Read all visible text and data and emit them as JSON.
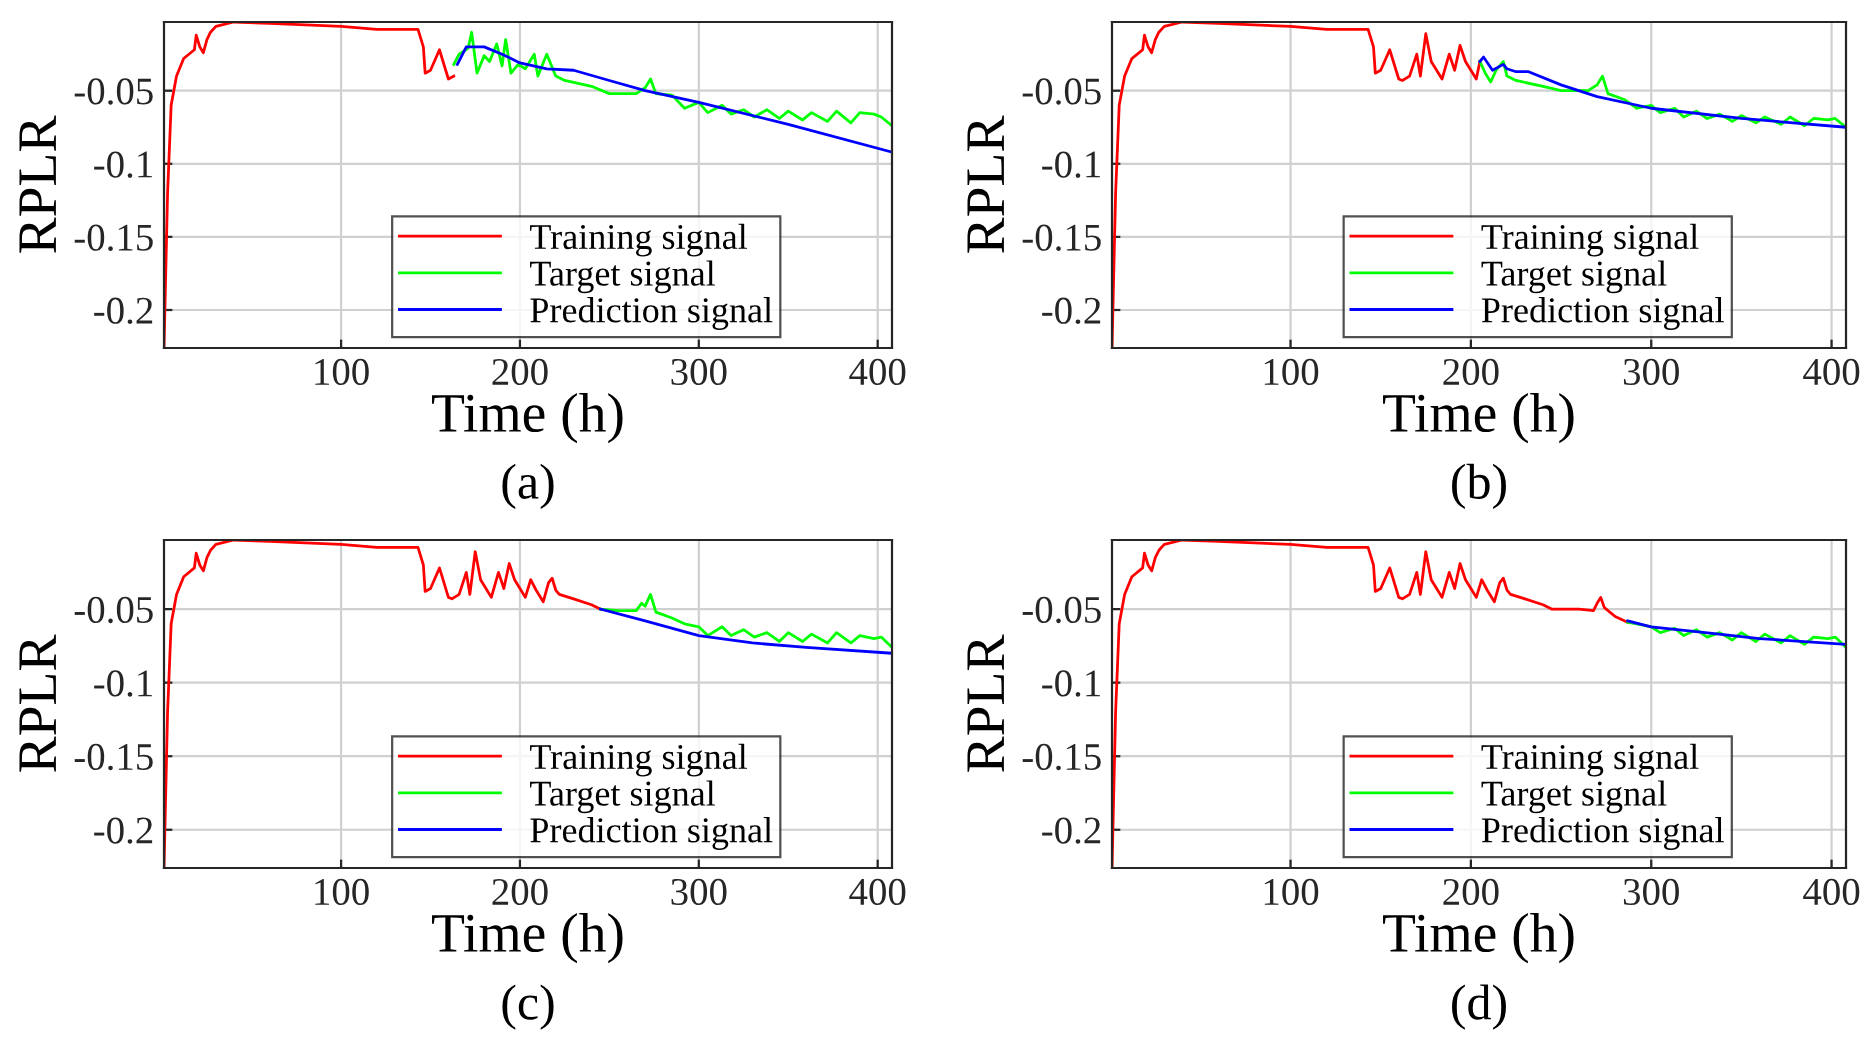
{
  "chart_data": [
    {
      "type": "line",
      "xlabel": "Time (h)",
      "ylabel": "RPLR",
      "annotations": [
        "(a)"
      ],
      "xlim": [
        1,
        408
      ],
      "ylim": [
        -0.226,
        -0.003
      ],
      "xticks": [
        100,
        200,
        300,
        400
      ],
      "yticks": [
        {
          "value": -0.2,
          "label": "-0.2"
        },
        {
          "value": -0.15,
          "label": "-0.15"
        },
        {
          "value": -0.1,
          "label": "-0.1"
        },
        {
          "value": -0.05,
          "label": "-0.05"
        }
      ],
      "grid": true,
      "legend": "bottom",
      "series": [
        {
          "name": "Training signal",
          "color": "#ff0000",
          "x": [
            1,
            3,
            5,
            8,
            12,
            18,
            19,
            21,
            23,
            25,
            27,
            30,
            40,
            60,
            80,
            100,
            120,
            140,
            143,
            146,
            147,
            150,
            155,
            157,
            160,
            163
          ],
          "values": [
            -0.226,
            -0.12,
            -0.06,
            -0.04,
            -0.028,
            -0.022,
            -0.012,
            -0.02,
            -0.024,
            -0.015,
            -0.01,
            -0.006,
            -0.003,
            -0.004,
            -0.005,
            -0.006,
            -0.008,
            -0.008,
            -0.008,
            -0.02,
            -0.038,
            -0.036,
            -0.022,
            -0.03,
            -0.042,
            -0.04
          ]
        },
        {
          "name": "Target signal",
          "color": "#00ff00",
          "x": [
            163,
            166,
            171,
            173,
            176,
            180,
            183,
            187,
            190,
            192,
            195,
            199,
            203,
            208,
            210,
            215,
            220,
            225,
            240,
            250,
            265,
            270,
            273,
            276,
            285,
            292,
            300,
            305,
            313,
            318,
            325,
            331,
            338,
            345,
            350,
            358,
            363,
            372,
            377,
            385,
            390,
            398,
            402,
            408
          ],
          "values": [
            -0.032,
            -0.025,
            -0.021,
            -0.01,
            -0.038,
            -0.026,
            -0.03,
            -0.018,
            -0.033,
            -0.015,
            -0.038,
            -0.032,
            -0.035,
            -0.025,
            -0.04,
            -0.025,
            -0.04,
            -0.043,
            -0.047,
            -0.052,
            -0.052,
            -0.048,
            -0.042,
            -0.052,
            -0.053,
            -0.062,
            -0.058,
            -0.065,
            -0.06,
            -0.066,
            -0.063,
            -0.068,
            -0.063,
            -0.069,
            -0.064,
            -0.07,
            -0.065,
            -0.071,
            -0.064,
            -0.072,
            -0.065,
            -0.066,
            -0.068,
            -0.074
          ]
        },
        {
          "name": "Prediction signal",
          "color": "#0000ff",
          "x": [
            165,
            170,
            180,
            190,
            200,
            215,
            230,
            250,
            270,
            300,
            350,
            408
          ],
          "values": [
            -0.032,
            -0.02,
            -0.02,
            -0.025,
            -0.031,
            -0.035,
            -0.036,
            -0.043,
            -0.05,
            -0.058,
            -0.073,
            -0.092
          ]
        }
      ]
    },
    {
      "type": "line",
      "xlabel": "Time (h)",
      "ylabel": "RPLR",
      "annotations": [
        "(b)"
      ],
      "xlim": [
        1,
        408
      ],
      "ylim": [
        -0.226,
        -0.003
      ],
      "xticks": [
        100,
        200,
        300,
        400
      ],
      "yticks": [
        {
          "value": -0.2,
          "label": "-0.2"
        },
        {
          "value": -0.15,
          "label": "-0.15"
        },
        {
          "value": -0.1,
          "label": "-0.1"
        },
        {
          "value": -0.05,
          "label": "-0.05"
        }
      ],
      "grid": true,
      "legend": "bottom",
      "series": [
        {
          "name": "Training signal",
          "color": "#ff0000",
          "x": [
            1,
            3,
            5,
            8,
            12,
            18,
            19,
            21,
            23,
            25,
            27,
            30,
            40,
            60,
            80,
            100,
            120,
            140,
            143,
            146,
            147,
            150,
            155,
            157,
            160,
            162,
            166,
            170,
            172,
            175,
            178,
            181,
            184,
            188,
            191,
            194,
            197,
            200,
            203,
            205
          ],
          "values": [
            -0.226,
            -0.12,
            -0.06,
            -0.04,
            -0.028,
            -0.022,
            -0.012,
            -0.02,
            -0.024,
            -0.015,
            -0.01,
            -0.006,
            -0.003,
            -0.004,
            -0.005,
            -0.006,
            -0.008,
            -0.008,
            -0.008,
            -0.02,
            -0.038,
            -0.036,
            -0.022,
            -0.03,
            -0.042,
            -0.043,
            -0.04,
            -0.025,
            -0.04,
            -0.011,
            -0.03,
            -0.036,
            -0.042,
            -0.025,
            -0.036,
            -0.019,
            -0.03,
            -0.036,
            -0.042,
            -0.03
          ]
        },
        {
          "name": "Target signal",
          "color": "#00ff00",
          "x": [
            205,
            208,
            211,
            214,
            218,
            220,
            225,
            240,
            250,
            265,
            270,
            273,
            276,
            285,
            292,
            300,
            305,
            313,
            318,
            325,
            331,
            338,
            345,
            350,
            358,
            363,
            372,
            377,
            385,
            390,
            398,
            402,
            408
          ],
          "values": [
            -0.03,
            -0.038,
            -0.044,
            -0.036,
            -0.03,
            -0.04,
            -0.043,
            -0.047,
            -0.05,
            -0.05,
            -0.046,
            -0.04,
            -0.052,
            -0.056,
            -0.062,
            -0.06,
            -0.065,
            -0.062,
            -0.068,
            -0.064,
            -0.069,
            -0.066,
            -0.071,
            -0.067,
            -0.072,
            -0.068,
            -0.073,
            -0.068,
            -0.074,
            -0.069,
            -0.07,
            -0.069,
            -0.075
          ]
        },
        {
          "name": "Prediction signal",
          "color": "#0000ff",
          "x": [
            205,
            207,
            212,
            218,
            220,
            225,
            232,
            250,
            270,
            300,
            350,
            408
          ],
          "values": [
            -0.03,
            -0.027,
            -0.036,
            -0.032,
            -0.035,
            -0.037,
            -0.037,
            -0.046,
            -0.054,
            -0.062,
            -0.069,
            -0.075
          ]
        }
      ]
    },
    {
      "type": "line",
      "xlabel": "Time (h)",
      "ylabel": "RPLR",
      "annotations": [
        "(c)"
      ],
      "xlim": [
        1,
        408
      ],
      "ylim": [
        -0.226,
        -0.003
      ],
      "xticks": [
        100,
        200,
        300,
        400
      ],
      "yticks": [
        {
          "value": -0.2,
          "label": "-0.2"
        },
        {
          "value": -0.15,
          "label": "-0.15"
        },
        {
          "value": -0.1,
          "label": "-0.1"
        },
        {
          "value": -0.05,
          "label": "-0.05"
        }
      ],
      "grid": true,
      "legend": "bottom",
      "series": [
        {
          "name": "Training signal",
          "color": "#ff0000",
          "x": [
            1,
            3,
            5,
            8,
            12,
            18,
            19,
            21,
            23,
            25,
            27,
            30,
            40,
            60,
            80,
            100,
            120,
            140,
            143,
            146,
            147,
            150,
            155,
            157,
            160,
            162,
            166,
            170,
            172,
            175,
            178,
            181,
            184,
            188,
            191,
            194,
            197,
            200,
            203,
            206,
            209,
            213,
            216,
            218,
            220,
            222,
            230,
            240,
            245
          ],
          "values": [
            -0.226,
            -0.12,
            -0.06,
            -0.04,
            -0.028,
            -0.022,
            -0.012,
            -0.02,
            -0.024,
            -0.015,
            -0.01,
            -0.006,
            -0.003,
            -0.004,
            -0.005,
            -0.006,
            -0.008,
            -0.008,
            -0.008,
            -0.02,
            -0.038,
            -0.036,
            -0.022,
            -0.03,
            -0.042,
            -0.043,
            -0.04,
            -0.025,
            -0.04,
            -0.011,
            -0.03,
            -0.036,
            -0.042,
            -0.025,
            -0.036,
            -0.019,
            -0.03,
            -0.036,
            -0.042,
            -0.03,
            -0.037,
            -0.045,
            -0.032,
            -0.029,
            -0.037,
            -0.04,
            -0.043,
            -0.047,
            -0.05
          ]
        },
        {
          "name": "Target signal",
          "color": "#00ff00",
          "x": [
            245,
            255,
            265,
            268,
            270,
            273,
            276,
            285,
            292,
            300,
            305,
            313,
            318,
            325,
            331,
            338,
            345,
            350,
            358,
            363,
            372,
            377,
            385,
            390,
            398,
            402,
            408
          ],
          "values": [
            -0.05,
            -0.051,
            -0.051,
            -0.046,
            -0.048,
            -0.04,
            -0.052,
            -0.056,
            -0.06,
            -0.062,
            -0.068,
            -0.062,
            -0.068,
            -0.064,
            -0.069,
            -0.066,
            -0.072,
            -0.066,
            -0.072,
            -0.067,
            -0.073,
            -0.066,
            -0.073,
            -0.068,
            -0.07,
            -0.069,
            -0.076
          ]
        },
        {
          "name": "Prediction signal",
          "color": "#0000ff",
          "x": [
            245,
            270,
            300,
            330,
            360,
            408
          ],
          "values": [
            -0.05,
            -0.058,
            -0.068,
            -0.073,
            -0.076,
            -0.08
          ]
        }
      ]
    },
    {
      "type": "line",
      "xlabel": "Time (h)",
      "ylabel": "RPLR",
      "annotations": [
        "(d)"
      ],
      "xlim": [
        1,
        408
      ],
      "ylim": [
        -0.226,
        -0.003
      ],
      "xticks": [
        100,
        200,
        300,
        400
      ],
      "yticks": [
        {
          "value": -0.2,
          "label": "-0.2"
        },
        {
          "value": -0.15,
          "label": "-0.15"
        },
        {
          "value": -0.1,
          "label": "-0.1"
        },
        {
          "value": -0.05,
          "label": "-0.05"
        }
      ],
      "grid": true,
      "legend": "bottom",
      "series": [
        {
          "name": "Training signal",
          "color": "#ff0000",
          "x": [
            1,
            3,
            5,
            8,
            12,
            18,
            19,
            21,
            23,
            25,
            27,
            30,
            40,
            60,
            80,
            100,
            120,
            140,
            143,
            146,
            147,
            150,
            155,
            157,
            160,
            162,
            166,
            170,
            172,
            175,
            178,
            181,
            184,
            188,
            191,
            194,
            197,
            200,
            203,
            206,
            209,
            213,
            216,
            218,
            220,
            222,
            230,
            240,
            245,
            260,
            268,
            270,
            272,
            274,
            280,
            287
          ],
          "values": [
            -0.226,
            -0.12,
            -0.06,
            -0.04,
            -0.028,
            -0.022,
            -0.012,
            -0.02,
            -0.024,
            -0.015,
            -0.01,
            -0.006,
            -0.003,
            -0.004,
            -0.005,
            -0.006,
            -0.008,
            -0.008,
            -0.008,
            -0.02,
            -0.038,
            -0.036,
            -0.022,
            -0.03,
            -0.042,
            -0.043,
            -0.04,
            -0.025,
            -0.04,
            -0.011,
            -0.03,
            -0.036,
            -0.042,
            -0.025,
            -0.036,
            -0.019,
            -0.03,
            -0.036,
            -0.042,
            -0.03,
            -0.037,
            -0.045,
            -0.032,
            -0.029,
            -0.037,
            -0.04,
            -0.043,
            -0.047,
            -0.05,
            -0.05,
            -0.051,
            -0.046,
            -0.042,
            -0.049,
            -0.055,
            -0.059
          ]
        },
        {
          "name": "Target signal",
          "color": "#00ff00",
          "x": [
            287,
            292,
            300,
            305,
            313,
            318,
            325,
            331,
            338,
            345,
            350,
            358,
            363,
            372,
            377,
            385,
            390,
            398,
            402,
            408
          ],
          "values": [
            -0.059,
            -0.06,
            -0.062,
            -0.066,
            -0.063,
            -0.068,
            -0.064,
            -0.069,
            -0.066,
            -0.071,
            -0.066,
            -0.072,
            -0.067,
            -0.073,
            -0.068,
            -0.074,
            -0.069,
            -0.07,
            -0.069,
            -0.076
          ]
        },
        {
          "name": "Prediction signal",
          "color": "#0000ff",
          "x": [
            287,
            300,
            330,
            360,
            408
          ],
          "values": [
            -0.058,
            -0.062,
            -0.066,
            -0.07,
            -0.074
          ]
        }
      ]
    }
  ]
}
